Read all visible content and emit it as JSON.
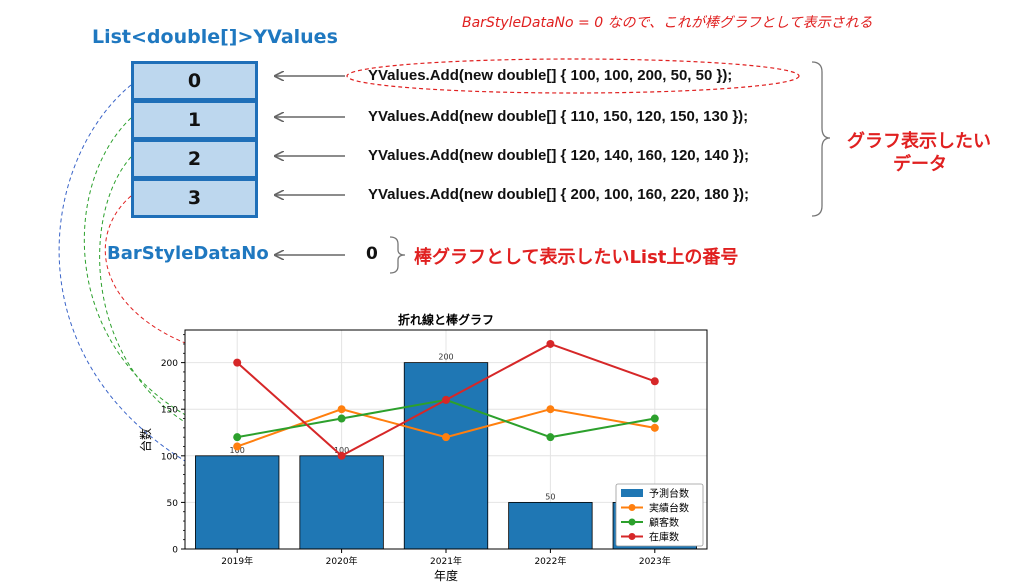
{
  "diagram": {
    "list_title": "List<double[]>YValues",
    "cells": [
      "0",
      "1",
      "2",
      "3"
    ],
    "code_lines": [
      "YValues.Add(new double[] { 100, 100, 200, 50, 50 });",
      "YValues.Add(new double[] { 110, 150, 120, 150, 130 });",
      "YValues.Add(new double[] { 120, 140, 160, 120, 140 });",
      "YValues.Add(new double[] { 200, 100, 160, 220, 180 });"
    ],
    "note": "BarStyleDataNo = 0 なので、これが棒グラフとして表示される",
    "graph_data_label_1": "グラフ表示したい",
    "graph_data_label_2": "データ",
    "bar_style_label": "BarStyleDataNo",
    "bar_style_value": "0",
    "bar_style_desc": "棒グラフとして表示したいList上の番号"
  },
  "colors": {
    "blue": "#1f77b4",
    "orange": "#ff7f0e",
    "green": "#2ca02c",
    "red": "#d62728",
    "accent_red": "#e02020",
    "accent_blue": "#1f78c0"
  },
  "chart_data": {
    "type": "bar+line",
    "title": "折れ線と棒グラフ",
    "xlabel": "年度",
    "ylabel": "台数",
    "categories": [
      "2019年",
      "2020年",
      "2021年",
      "2022年",
      "2023年"
    ],
    "ylim": [
      0,
      235
    ],
    "yticks": [
      0,
      50,
      100,
      150,
      200
    ],
    "grid": true,
    "legend_position": "bottom-right",
    "series": [
      {
        "name": "予測台数",
        "kind": "bar",
        "color": "#1f77b4",
        "values": [
          100,
          100,
          200,
          50,
          50
        ]
      },
      {
        "name": "実績台数",
        "kind": "line",
        "color": "#ff7f0e",
        "values": [
          110,
          150,
          120,
          150,
          130
        ]
      },
      {
        "name": "顧客数",
        "kind": "line",
        "color": "#2ca02c",
        "values": [
          120,
          140,
          160,
          120,
          140
        ]
      },
      {
        "name": "在庫数",
        "kind": "line",
        "color": "#d62728",
        "values": [
          200,
          100,
          160,
          220,
          180
        ]
      }
    ]
  }
}
